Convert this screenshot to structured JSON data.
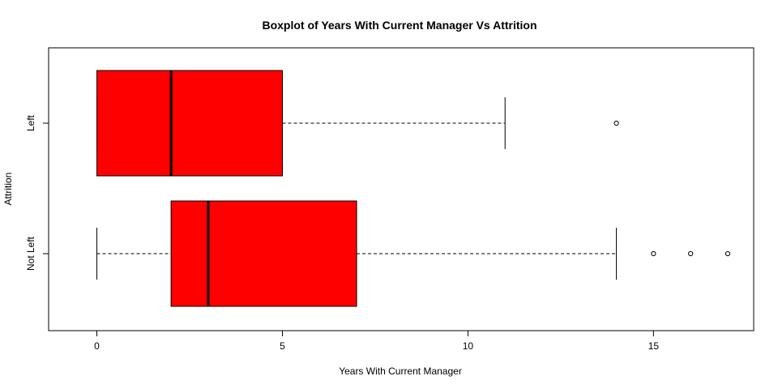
{
  "chart_data": {
    "type": "boxplot",
    "orientation": "horizontal",
    "title": "Boxplot of Years With Current Manager Vs Attrition",
    "xlabel": "Years With Current Manager",
    "ylabel": "Attrition",
    "xlim": [
      -1.3,
      17.7
    ],
    "x_ticks": [
      0,
      5,
      10,
      15
    ],
    "fill_color": "#ff0000",
    "grid": false,
    "categories": [
      "Not Left",
      "Left"
    ],
    "boxes": [
      {
        "category": "Not Left",
        "whisker_low": 0,
        "q1": 2,
        "median": 3,
        "q3": 7,
        "whisker_high": 14,
        "outliers": [
          15,
          16,
          17
        ]
      },
      {
        "category": "Left",
        "whisker_low": 0,
        "q1": 0,
        "median": 2,
        "q3": 5,
        "whisker_high": 11,
        "outliers": [
          14
        ]
      }
    ]
  }
}
